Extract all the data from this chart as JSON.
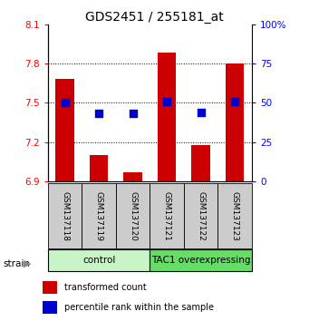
{
  "title": "GDS2451 / 255181_at",
  "samples": [
    "GSM137118",
    "GSM137119",
    "GSM137120",
    "GSM137121",
    "GSM137122",
    "GSM137123"
  ],
  "red_values": [
    7.68,
    7.1,
    6.97,
    7.88,
    7.18,
    7.8
  ],
  "blue_values": [
    50,
    43,
    43,
    51,
    44,
    51
  ],
  "ylim_left": [
    6.9,
    8.1
  ],
  "ylim_right": [
    0,
    100
  ],
  "yticks_left": [
    6.9,
    7.2,
    7.5,
    7.8,
    8.1
  ],
  "ytick_labels_left": [
    "6.9",
    "7.2",
    "7.5",
    "7.8",
    "8.1"
  ],
  "yticks_right": [
    0,
    25,
    50,
    75,
    100
  ],
  "ytick_labels_right": [
    "0",
    "25",
    "50",
    "75",
    "100%"
  ],
  "hlines": [
    7.2,
    7.5,
    7.8
  ],
  "groups": [
    {
      "label": "control",
      "indices": [
        0,
        1,
        2
      ],
      "color": "#c8f4c8"
    },
    {
      "label": "TAC1 overexpressing",
      "indices": [
        3,
        4,
        5
      ],
      "color": "#66dd66"
    }
  ],
  "bar_color": "#cc0000",
  "dot_color": "#0000cc",
  "bar_width": 0.55,
  "base_value": 6.9,
  "legend_red": "transformed count",
  "legend_blue": "percentile rank within the sample",
  "strain_label": "strain",
  "tick_label_bg": "#cccccc"
}
